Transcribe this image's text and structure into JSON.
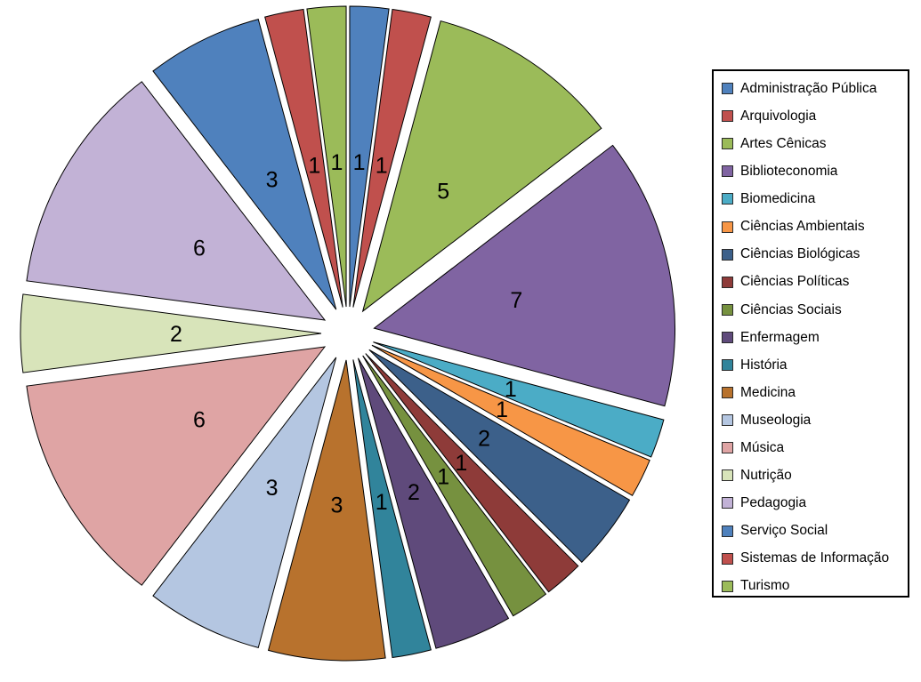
{
  "chart_data": {
    "type": "pie",
    "title": "",
    "legend_position": "right",
    "exploded": true,
    "start_angle_deg": 0,
    "direction": "clockwise",
    "data_labels": "value",
    "total": 48,
    "categories": [
      "Administração Pública",
      "Arquivologia",
      "Artes Cênicas",
      "Biblioteconomia",
      "Biomedicina",
      "Ciências Ambientais",
      "Ciências Biológicas",
      "Ciências Políticas",
      "Ciências Sociais",
      "Enfermagem",
      "História",
      "Medicina",
      "Museologia",
      "Música",
      "Nutrição",
      "Pedagogia",
      "Serviço Social",
      "Sistemas de Informação",
      "Turismo"
    ],
    "values": [
      1,
      1,
      5,
      7,
      1,
      1,
      2,
      1,
      1,
      2,
      1,
      3,
      3,
      6,
      2,
      6,
      3,
      1,
      1
    ],
    "colors": [
      "#4F81BD",
      "#C0504D",
      "#9BBB59",
      "#8064A2",
      "#4BACC6",
      "#F79646",
      "#3C608A",
      "#8E3B39",
      "#76913F",
      "#5F4A7B",
      "#31849B",
      "#B8722D",
      "#B4C6E1",
      "#DFA4A4",
      "#D8E4BA",
      "#C2B2D6",
      "#4F81BD",
      "#C0504D",
      "#9BBB59"
    ],
    "slice_border_color": "#000000",
    "background_color": "#FFFFFF",
    "legend_border_color": "#000000"
  }
}
